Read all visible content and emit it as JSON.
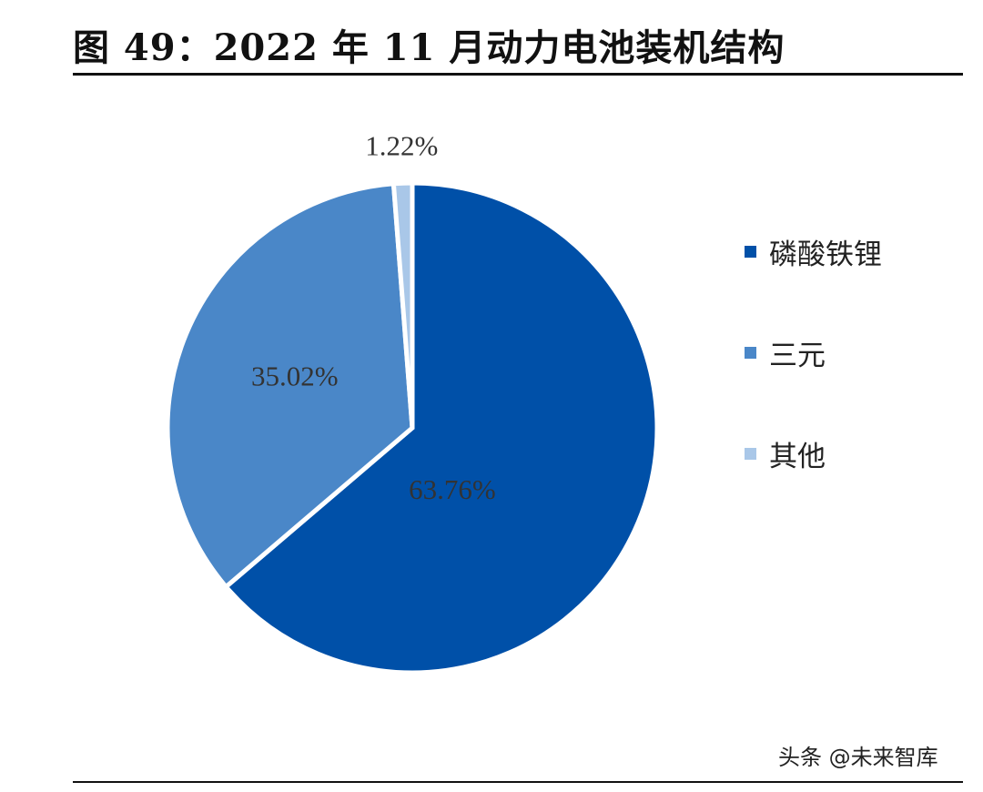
{
  "title": "图 49：2022 年 11 月动力电池装机结构",
  "chart_data": {
    "type": "pie",
    "title": "",
    "slices": [
      {
        "label": "磷酸铁锂",
        "value": 63.76,
        "display": "63.76%",
        "color": "#0050A8"
      },
      {
        "label": "三元",
        "value": 35.02,
        "display": "35.02%",
        "color": "#4A87C8"
      },
      {
        "label": "其他",
        "value": 1.22,
        "display": "1.22%",
        "color": "#A9C7E8"
      }
    ],
    "start_angle_deg": 0,
    "direction": "clockwise",
    "legend_position": "right"
  },
  "legend": {
    "items": [
      {
        "label": "磷酸铁锂",
        "color": "#0050A8"
      },
      {
        "label": "三元",
        "color": "#4A87C8"
      },
      {
        "label": "其他",
        "color": "#A9C7E8"
      }
    ]
  },
  "watermark": "头条 @未来智库"
}
